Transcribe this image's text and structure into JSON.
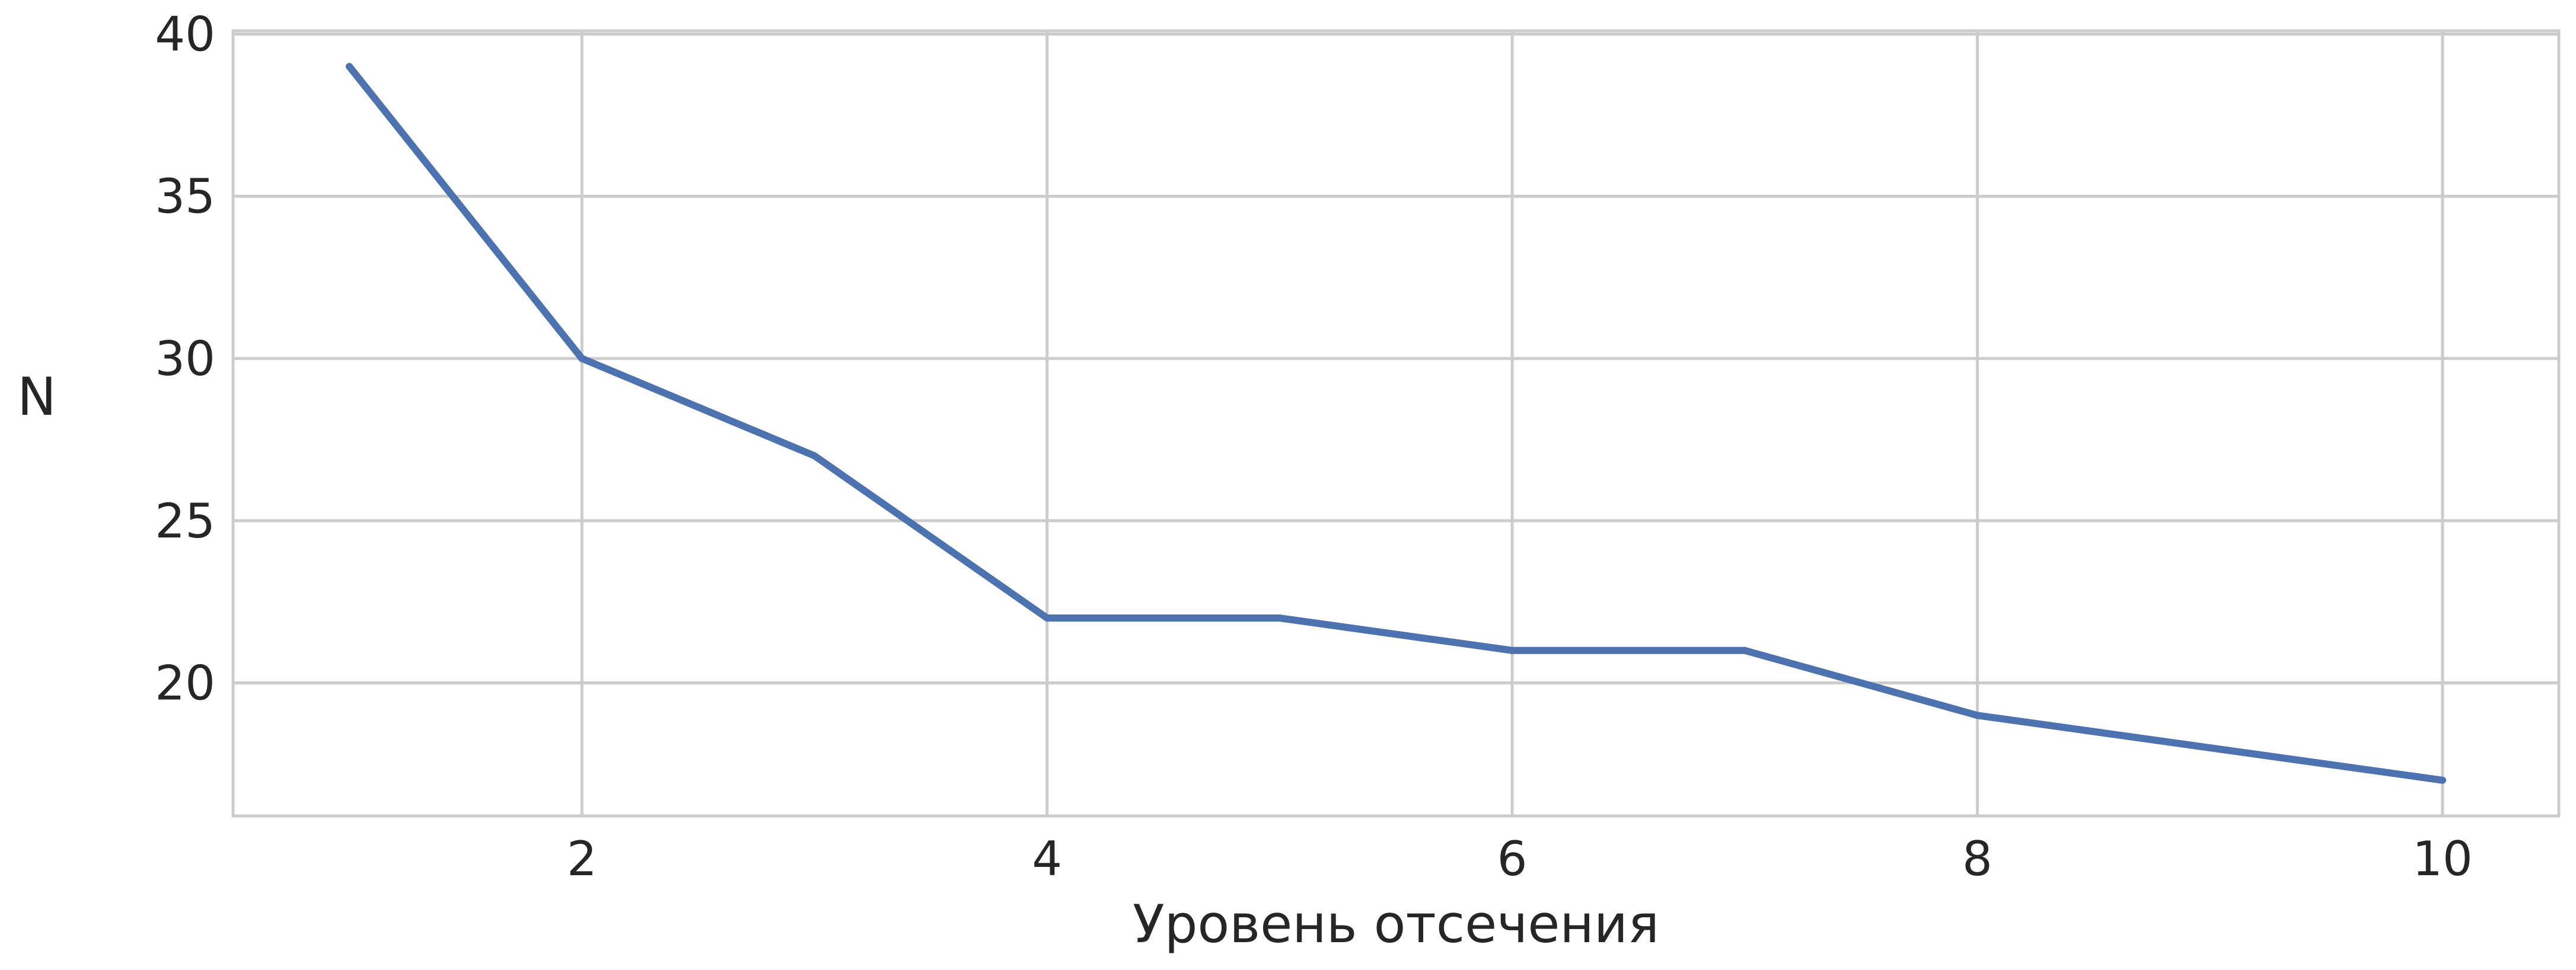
{
  "chart_data": {
    "type": "line",
    "title": "",
    "xlabel": "Уровень отсечения",
    "ylabel": "N",
    "x": [
      1,
      2,
      3,
      4,
      5,
      6,
      7,
      8,
      9,
      10
    ],
    "series": [
      {
        "values": [
          39,
          30,
          27,
          22,
          22,
          21,
          21,
          19,
          18,
          17
        ]
      }
    ],
    "xlim": [
      0.5,
      10.5
    ],
    "ylim": [
      15.9,
      40.1
    ],
    "xticks": [
      2,
      4,
      6,
      8,
      10
    ],
    "yticks": [
      20,
      25,
      30,
      35,
      40
    ],
    "grid": true,
    "colors": {
      "line": "#4c72b0",
      "grid": "#cccccc",
      "text": "#262626",
      "background": "#ffffff"
    }
  }
}
